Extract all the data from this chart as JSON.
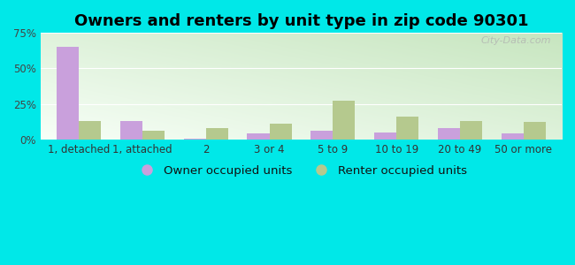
{
  "title": "Owners and renters by unit type in zip code 90301",
  "categories": [
    "1, detached",
    "1, attached",
    "2",
    "3 or 4",
    "5 to 9",
    "10 to 19",
    "20 to 49",
    "50 or more"
  ],
  "owner_values": [
    65,
    13,
    0.5,
    4,
    6,
    5,
    8,
    4
  ],
  "renter_values": [
    13,
    6,
    8,
    11,
    27,
    16,
    13,
    12
  ],
  "owner_color": "#c9a0dc",
  "renter_color": "#b5c98e",
  "ylim": [
    0,
    75
  ],
  "yticks": [
    0,
    25,
    50,
    75
  ],
  "ytick_labels": [
    "0%",
    "25%",
    "50%",
    "75%"
  ],
  "background_color": "#00e8e8",
  "plot_bg_top_right": "#c8e6c0",
  "plot_bg_bottom_left": "#ffffff",
  "legend_owner": "Owner occupied units",
  "legend_renter": "Renter occupied units",
  "watermark": "City-Data.com",
  "bar_width": 0.35,
  "title_fontsize": 13,
  "tick_fontsize": 8.5,
  "legend_fontsize": 9.5
}
